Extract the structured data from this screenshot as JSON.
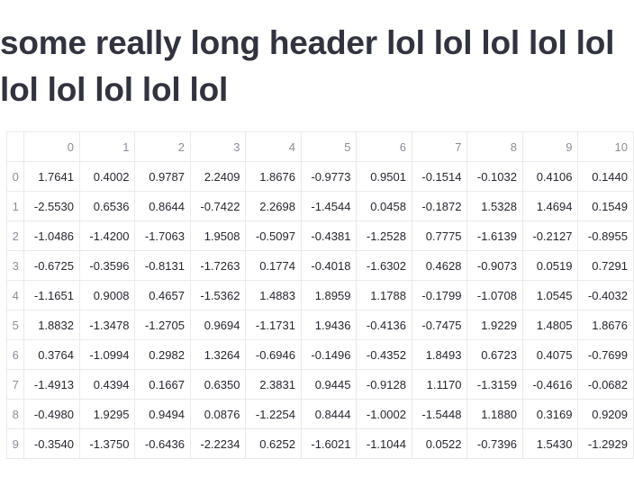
{
  "header": {
    "title": "some really long header lol lol lol lol lol lol lol lol lol lol"
  },
  "table": {
    "columns": [
      "",
      "0",
      "1",
      "2",
      "3",
      "4",
      "5",
      "6",
      "7",
      "8",
      "9",
      "10"
    ],
    "rows": [
      {
        "index": "0",
        "values": [
          "1.7641",
          "0.4002",
          "0.9787",
          "2.2409",
          "1.8676",
          "-0.9773",
          "0.9501",
          "-0.1514",
          "-0.1032",
          "0.4106",
          "0.1440"
        ]
      },
      {
        "index": "1",
        "values": [
          "-2.5530",
          "0.6536",
          "0.8644",
          "-0.7422",
          "2.2698",
          "-1.4544",
          "0.0458",
          "-0.1872",
          "1.5328",
          "1.4694",
          "0.1549"
        ]
      },
      {
        "index": "2",
        "values": [
          "-1.0486",
          "-1.4200",
          "-1.7063",
          "1.9508",
          "-0.5097",
          "-0.4381",
          "-1.2528",
          "0.7775",
          "-1.6139",
          "-0.2127",
          "-0.8955"
        ]
      },
      {
        "index": "3",
        "values": [
          "-0.6725",
          "-0.3596",
          "-0.8131",
          "-1.7263",
          "0.1774",
          "-0.4018",
          "-1.6302",
          "0.4628",
          "-0.9073",
          "0.0519",
          "0.7291"
        ]
      },
      {
        "index": "4",
        "values": [
          "-1.1651",
          "0.9008",
          "0.4657",
          "-1.5362",
          "1.4883",
          "1.8959",
          "1.1788",
          "-0.1799",
          "-1.0708",
          "1.0545",
          "-0.4032"
        ]
      },
      {
        "index": "5",
        "values": [
          "1.8832",
          "-1.3478",
          "-1.2705",
          "0.9694",
          "-1.1731",
          "1.9436",
          "-0.4136",
          "-0.7475",
          "1.9229",
          "1.4805",
          "1.8676"
        ]
      },
      {
        "index": "6",
        "values": [
          "0.3764",
          "-1.0994",
          "0.2982",
          "1.3264",
          "-0.6946",
          "-0.1496",
          "-0.4352",
          "1.8493",
          "0.6723",
          "0.4075",
          "-0.7699"
        ]
      },
      {
        "index": "7",
        "values": [
          "-1.4913",
          "0.4394",
          "0.1667",
          "0.6350",
          "2.3831",
          "0.9445",
          "-0.9128",
          "1.1170",
          "-1.3159",
          "-0.4616",
          "-0.0682"
        ]
      },
      {
        "index": "8",
        "values": [
          "-0.4980",
          "1.9295",
          "0.9494",
          "0.0876",
          "-1.2254",
          "0.8444",
          "-1.0002",
          "-1.5448",
          "1.1880",
          "0.3169",
          "0.9209"
        ]
      },
      {
        "index": "9",
        "values": [
          "-0.3540",
          "-1.3750",
          "-0.6436",
          "-2.2234",
          "0.6252",
          "-1.6021",
          "-1.1044",
          "0.0522",
          "-0.7396",
          "1.5430",
          "-1.2929"
        ]
      }
    ]
  }
}
